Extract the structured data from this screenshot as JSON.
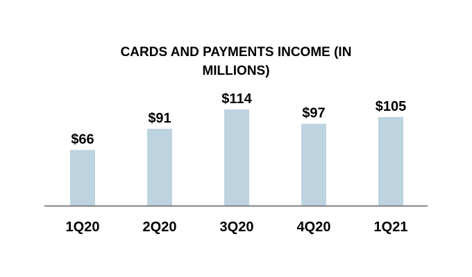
{
  "chart_data": {
    "type": "bar",
    "title": "CARDS AND PAYMENTS INCOME (IN MILLIONS)",
    "categories": [
      "1Q20",
      "2Q20",
      "3Q20",
      "4Q20",
      "1Q21"
    ],
    "values": [
      66,
      91,
      114,
      97,
      105
    ],
    "data_labels": [
      "$66",
      "$91",
      "$114",
      "$97",
      "$105"
    ],
    "xlabel": "",
    "ylabel": "",
    "ylim": [
      0,
      114
    ],
    "grid": false,
    "legend": "none",
    "bar_color": "#bdd4e0",
    "axis_color": "#808080"
  }
}
